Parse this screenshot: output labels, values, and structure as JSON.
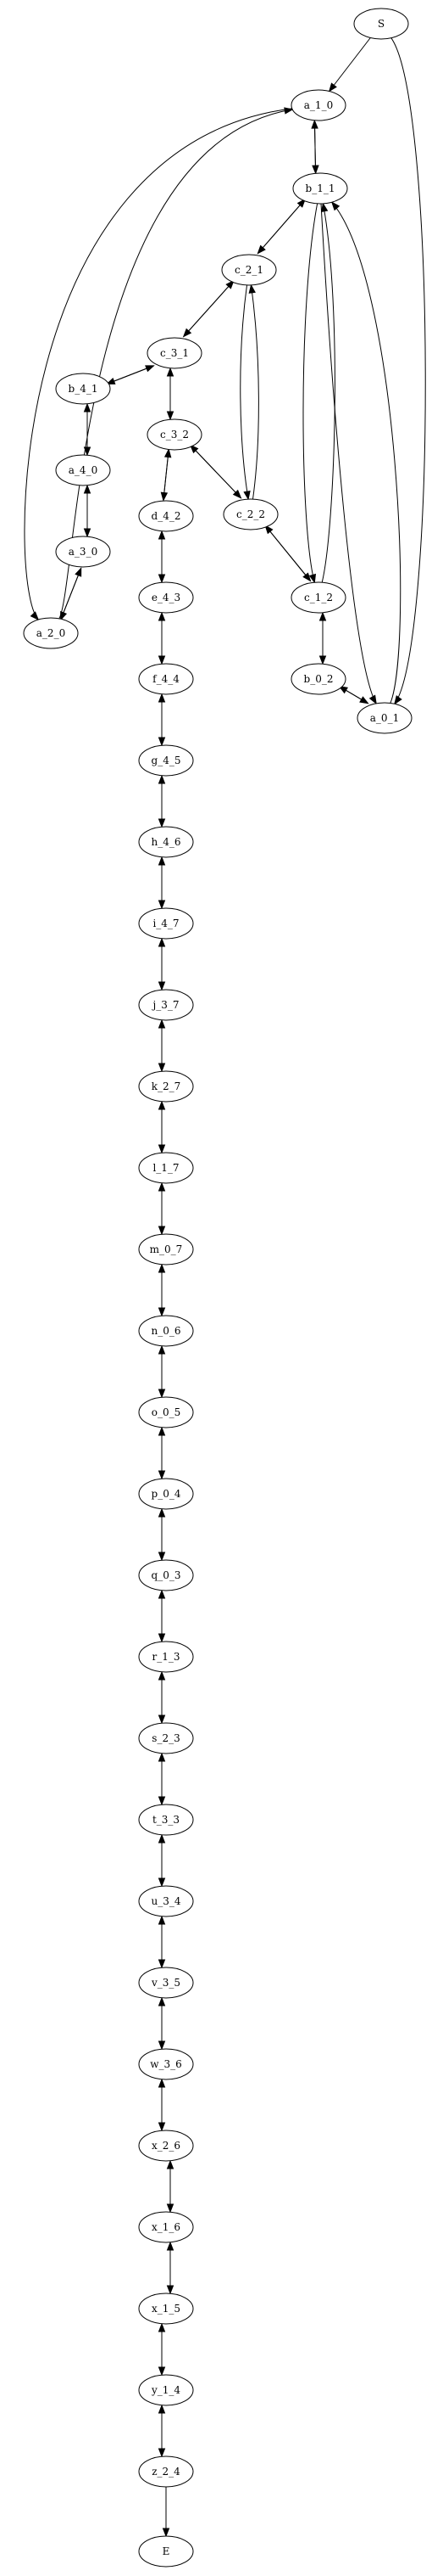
{
  "diagram": {
    "type": "directed-graph",
    "nodes": [
      {
        "id": "S",
        "label": "S"
      },
      {
        "id": "a_1_0",
        "label": "a_1_0"
      },
      {
        "id": "b_1_1",
        "label": "b_1_1"
      },
      {
        "id": "c_2_1",
        "label": "c_2_1"
      },
      {
        "id": "c_3_1",
        "label": "c_3_1"
      },
      {
        "id": "b_4_1",
        "label": "b_4_1"
      },
      {
        "id": "c_3_2",
        "label": "c_3_2"
      },
      {
        "id": "a_4_0",
        "label": "a_4_0"
      },
      {
        "id": "d_4_2",
        "label": "d_4_2"
      },
      {
        "id": "c_2_2",
        "label": "c_2_2"
      },
      {
        "id": "a_3_0",
        "label": "a_3_0"
      },
      {
        "id": "e_4_3",
        "label": "e_4_3"
      },
      {
        "id": "c_1_2",
        "label": "c_1_2"
      },
      {
        "id": "a_2_0",
        "label": "a_2_0"
      },
      {
        "id": "f_4_4",
        "label": "f_4_4"
      },
      {
        "id": "b_0_2",
        "label": "b_0_2"
      },
      {
        "id": "a_0_1",
        "label": "a_0_1"
      },
      {
        "id": "g_4_5",
        "label": "g_4_5"
      },
      {
        "id": "h_4_6",
        "label": "h_4_6"
      },
      {
        "id": "i_4_7",
        "label": "i_4_7"
      },
      {
        "id": "j_3_7",
        "label": "j_3_7"
      },
      {
        "id": "k_2_7",
        "label": "k_2_7"
      },
      {
        "id": "l_1_7",
        "label": "l_1_7"
      },
      {
        "id": "m_0_7",
        "label": "m_0_7"
      },
      {
        "id": "n_0_6",
        "label": "n_0_6"
      },
      {
        "id": "o_0_5",
        "label": "o_0_5"
      },
      {
        "id": "p_0_4",
        "label": "p_0_4"
      },
      {
        "id": "q_0_3",
        "label": "q_0_3"
      },
      {
        "id": "r_1_3",
        "label": "r_1_3"
      },
      {
        "id": "s_2_3",
        "label": "s_2_3"
      },
      {
        "id": "t_3_3",
        "label": "t_3_3"
      },
      {
        "id": "u_3_4",
        "label": "u_3_4"
      },
      {
        "id": "v_3_5",
        "label": "v_3_5"
      },
      {
        "id": "w_3_6",
        "label": "w_3_6"
      },
      {
        "id": "x_2_6",
        "label": "x_2_6"
      },
      {
        "id": "x_1_6",
        "label": "x_1_6"
      },
      {
        "id": "x_1_5",
        "label": "x_1_5"
      },
      {
        "id": "y_1_4",
        "label": "y_1_4"
      },
      {
        "id": "z_2_4",
        "label": "z_2_4"
      },
      {
        "id": "E",
        "label": "E"
      }
    ],
    "edges": [
      [
        "S",
        "a_1_0"
      ],
      [
        "S",
        "a_0_1"
      ],
      [
        "a_1_0",
        "b_1_1"
      ],
      [
        "b_1_1",
        "a_1_0"
      ],
      [
        "a_1_0",
        "a_2_0"
      ],
      [
        "a_2_0",
        "a_1_0"
      ],
      [
        "b_1_1",
        "c_2_1"
      ],
      [
        "c_2_1",
        "b_1_1"
      ],
      [
        "b_1_1",
        "c_1_2"
      ],
      [
        "c_1_2",
        "b_1_1"
      ],
      [
        "b_1_1",
        "a_0_1"
      ],
      [
        "a_0_1",
        "b_1_1"
      ],
      [
        "c_2_1",
        "c_3_1"
      ],
      [
        "c_3_1",
        "c_2_1"
      ],
      [
        "c_2_1",
        "c_2_2"
      ],
      [
        "c_2_2",
        "c_2_1"
      ],
      [
        "c_3_1",
        "b_4_1"
      ],
      [
        "b_4_1",
        "c_3_1"
      ],
      [
        "c_3_1",
        "c_3_2"
      ],
      [
        "c_3_2",
        "c_3_1"
      ],
      [
        "b_4_1",
        "a_4_0"
      ],
      [
        "a_4_0",
        "b_4_1"
      ],
      [
        "c_3_2",
        "d_4_2"
      ],
      [
        "d_4_2",
        "c_3_2"
      ],
      [
        "c_3_2",
        "c_2_2"
      ],
      [
        "c_2_2",
        "c_3_2"
      ],
      [
        "a_4_0",
        "a_3_0"
      ],
      [
        "a_3_0",
        "a_4_0"
      ],
      [
        "d_4_2",
        "e_4_3"
      ],
      [
        "e_4_3",
        "d_4_2"
      ],
      [
        "c_2_2",
        "c_1_2"
      ],
      [
        "c_1_2",
        "c_2_2"
      ],
      [
        "a_3_0",
        "a_2_0"
      ],
      [
        "a_2_0",
        "a_3_0"
      ],
      [
        "e_4_3",
        "f_4_4"
      ],
      [
        "f_4_4",
        "e_4_3"
      ],
      [
        "c_1_2",
        "b_0_2"
      ],
      [
        "b_0_2",
        "c_1_2"
      ],
      [
        "b_0_2",
        "a_0_1"
      ],
      [
        "a_0_1",
        "b_0_2"
      ],
      [
        "f_4_4",
        "g_4_5"
      ],
      [
        "g_4_5",
        "f_4_4"
      ],
      [
        "g_4_5",
        "h_4_6"
      ],
      [
        "h_4_6",
        "g_4_5"
      ],
      [
        "h_4_6",
        "i_4_7"
      ],
      [
        "i_4_7",
        "h_4_6"
      ],
      [
        "i_4_7",
        "j_3_7"
      ],
      [
        "j_3_7",
        "i_4_7"
      ],
      [
        "j_3_7",
        "k_2_7"
      ],
      [
        "k_2_7",
        "j_3_7"
      ],
      [
        "k_2_7",
        "l_1_7"
      ],
      [
        "l_1_7",
        "k_2_7"
      ],
      [
        "l_1_7",
        "m_0_7"
      ],
      [
        "m_0_7",
        "l_1_7"
      ],
      [
        "m_0_7",
        "n_0_6"
      ],
      [
        "n_0_6",
        "m_0_7"
      ],
      [
        "n_0_6",
        "o_0_5"
      ],
      [
        "o_0_5",
        "n_0_6"
      ],
      [
        "o_0_5",
        "p_0_4"
      ],
      [
        "p_0_4",
        "o_0_5"
      ],
      [
        "p_0_4",
        "q_0_3"
      ],
      [
        "q_0_3",
        "p_0_4"
      ],
      [
        "q_0_3",
        "r_1_3"
      ],
      [
        "r_1_3",
        "q_0_3"
      ],
      [
        "r_1_3",
        "s_2_3"
      ],
      [
        "s_2_3",
        "r_1_3"
      ],
      [
        "s_2_3",
        "t_3_3"
      ],
      [
        "t_3_3",
        "s_2_3"
      ],
      [
        "t_3_3",
        "u_3_4"
      ],
      [
        "u_3_4",
        "t_3_3"
      ],
      [
        "u_3_4",
        "v_3_5"
      ],
      [
        "v_3_5",
        "u_3_4"
      ],
      [
        "v_3_5",
        "w_3_6"
      ],
      [
        "w_3_6",
        "v_3_5"
      ],
      [
        "w_3_6",
        "x_2_6"
      ],
      [
        "x_2_6",
        "w_3_6"
      ],
      [
        "x_2_6",
        "x_1_6"
      ],
      [
        "x_1_6",
        "x_2_6"
      ],
      [
        "x_1_6",
        "x_1_5"
      ],
      [
        "x_1_5",
        "x_1_6"
      ],
      [
        "x_1_5",
        "y_1_4"
      ],
      [
        "y_1_4",
        "x_1_5"
      ],
      [
        "y_1_4",
        "z_2_4"
      ],
      [
        "z_2_4",
        "y_1_4"
      ],
      [
        "z_2_4",
        "E"
      ]
    ]
  }
}
